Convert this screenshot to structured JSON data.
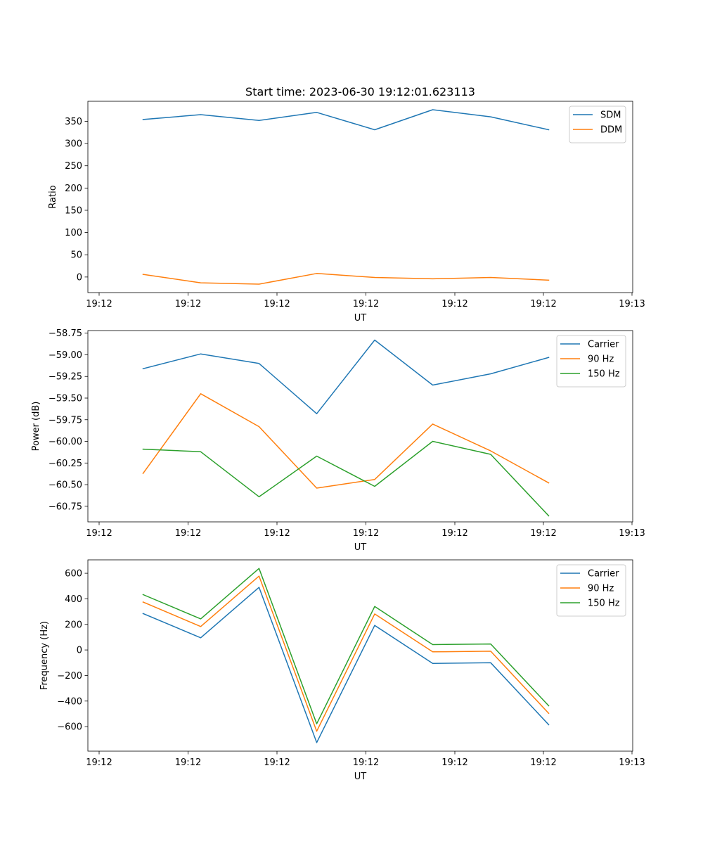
{
  "title": "Start time: 2023-06-30 19:12:01.623113",
  "colors": {
    "c0": "#1f77b4",
    "c1": "#ff7f0e",
    "c2": "#2ca02c"
  },
  "chart_data": [
    {
      "type": "line",
      "xlabel": "UT",
      "ylabel": "Ratio",
      "x_tick_labels": [
        "19:12",
        "19:12",
        "19:12",
        "19:12",
        "19:12",
        "19:12",
        "19:13"
      ],
      "y_ticks": [
        0,
        50,
        100,
        150,
        200,
        250,
        300,
        350
      ],
      "y_tick_labels": [
        "0",
        "50",
        "100",
        "150",
        "200",
        "250",
        "300",
        "350"
      ],
      "ylim": [
        -35,
        395
      ],
      "legend_position": "upper-right",
      "series": [
        {
          "name": "SDM",
          "color": "#1f77b4",
          "values": [
            354,
            365,
            352,
            370,
            331,
            376,
            360,
            331
          ]
        },
        {
          "name": "DDM",
          "color": "#ff7f0e",
          "values": [
            6,
            -13,
            -16,
            8,
            -1,
            -4,
            -1,
            -7
          ]
        }
      ]
    },
    {
      "type": "line",
      "xlabel": "UT",
      "ylabel": "Power (dB)",
      "x_tick_labels": [
        "19:12",
        "19:12",
        "19:12",
        "19:12",
        "19:12",
        "19:12",
        "19:13"
      ],
      "y_ticks": [
        -60.75,
        -60.5,
        -60.25,
        -60.0,
        -59.75,
        -59.5,
        -59.25,
        -59.0,
        -58.75
      ],
      "y_tick_labels": [
        "−60.75",
        "−60.50",
        "−60.25",
        "−60.00",
        "−59.75",
        "−59.50",
        "−59.25",
        "−59.00",
        "−58.75"
      ],
      "ylim": [
        -60.93,
        -58.72
      ],
      "legend_position": "upper-right",
      "series": [
        {
          "name": "Carrier",
          "color": "#1f77b4",
          "values": [
            -59.16,
            -58.99,
            -59.1,
            -59.68,
            -58.83,
            -59.35,
            -59.22,
            -59.03
          ]
        },
        {
          "name": "90 Hz",
          "color": "#ff7f0e",
          "values": [
            -60.37,
            -59.45,
            -59.83,
            -60.54,
            -60.44,
            -59.8,
            -60.11,
            -60.48
          ]
        },
        {
          "name": "150 Hz",
          "color": "#2ca02c",
          "values": [
            -60.09,
            -60.12,
            -60.64,
            -60.17,
            -60.52,
            -60.0,
            -60.15,
            -60.86
          ]
        }
      ]
    },
    {
      "type": "line",
      "xlabel": "UT",
      "ylabel": "Frequency (Hz)",
      "x_tick_labels": [
        "19:12",
        "19:12",
        "19:12",
        "19:12",
        "19:12",
        "19:12",
        "19:13"
      ],
      "y_ticks": [
        -600,
        -400,
        -200,
        0,
        200,
        400,
        600
      ],
      "y_tick_labels": [
        "−600",
        "−400",
        "−200",
        "0",
        "200",
        "400",
        "600"
      ],
      "ylim": [
        -792,
        705
      ],
      "legend_position": "upper-right",
      "series": [
        {
          "name": "Carrier",
          "color": "#1f77b4",
          "values": [
            285,
            95,
            490,
            -725,
            192,
            -105,
            -100,
            -585
          ]
        },
        {
          "name": "90 Hz",
          "color": "#ff7f0e",
          "values": [
            375,
            183,
            578,
            -636,
            282,
            -15,
            -10,
            -496
          ]
        },
        {
          "name": "150 Hz",
          "color": "#2ca02c",
          "values": [
            433,
            243,
            638,
            -578,
            340,
            42,
            47,
            -437
          ]
        }
      ]
    }
  ]
}
